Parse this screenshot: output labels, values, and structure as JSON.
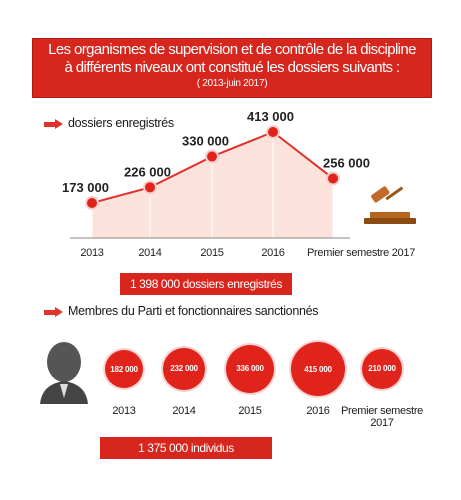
{
  "banner": {
    "line1": "Les organismes de supervision et de contrôle de la discipline",
    "line2": "à différents niveaux ont constitué les dossiers suivants :",
    "line3": "( 2013-juin 2017)"
  },
  "section1": {
    "title": "dossiers enregistrés",
    "total": "1 398 000 dossiers enregistrés"
  },
  "section2": {
    "title": "Membres du Parti et fonctionnaires sanctionnés",
    "total": "1 375 000 individus"
  },
  "colors": {
    "accent": "#d7261d",
    "area": "#fbe3dc",
    "line": "#e0322a"
  },
  "icons": [
    "arrow-right-icon",
    "gavel-icon",
    "person-silhouette-icon"
  ],
  "chart_data": [
    {
      "type": "area",
      "title": "dossiers enregistrés",
      "categories": [
        "2013",
        "2014",
        "2015",
        "2016",
        "Premier semestre 2017"
      ],
      "values": [
        173000,
        226000,
        330000,
        413000,
        256000
      ],
      "value_labels": [
        "173 000",
        "226 000",
        "330 000",
        "413 000",
        "256 000"
      ],
      "total": "1 398 000 dossiers enregistrés",
      "grid": false
    },
    {
      "type": "bubble",
      "title": "Membres du Parti et fonctionnaires sanctionnés",
      "categories": [
        "2013",
        "2014",
        "2015",
        "2016",
        "Premier semestre 2017"
      ],
      "values": [
        182000,
        232000,
        336000,
        415000,
        210000
      ],
      "value_labels": [
        "182 000",
        "232 000",
        "336 000",
        "415 000",
        "210 000"
      ],
      "total": "1 375 000 individus"
    }
  ]
}
